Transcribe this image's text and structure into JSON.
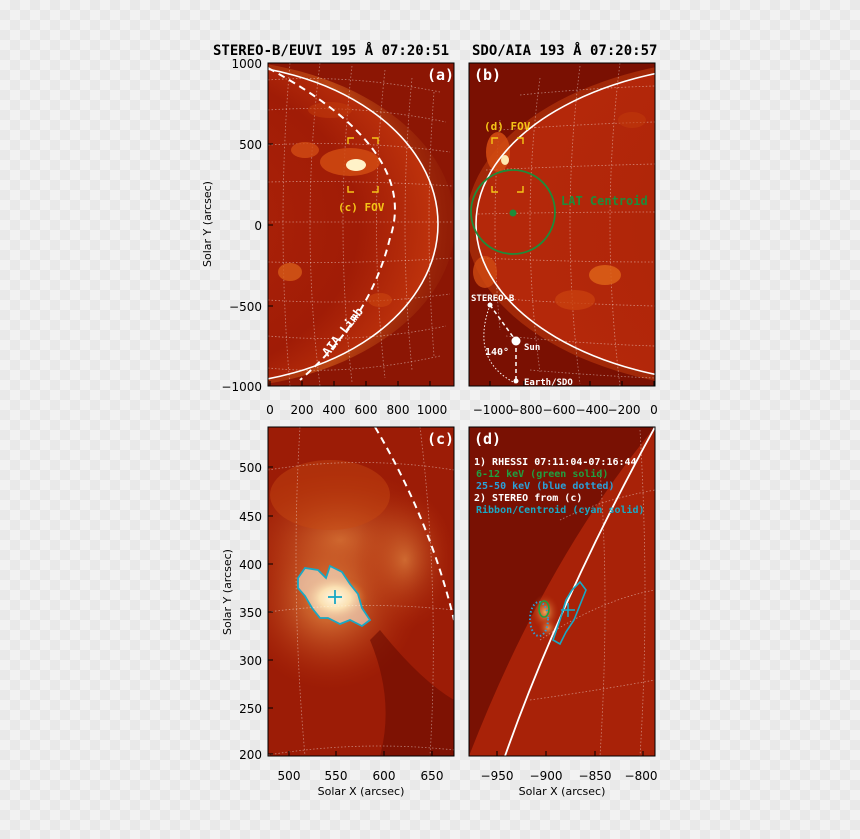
{
  "titles": {
    "left": "STEREO-B/EUVI 195 Å 07:20:51",
    "right": "SDO/AIA 193 Å 07:20:57"
  },
  "axes": {
    "solar_x": "Solar X (arcsec)",
    "solar_y": "Solar Y (arcsec)"
  },
  "panels": {
    "a": {
      "label": "(a)",
      "fov_label": "(c) FOV",
      "limb_label": "AIA Limb",
      "x_ticks": [
        "0",
        "200",
        "400",
        "600",
        "800",
        "1000"
      ],
      "y_ticks": [
        "1000",
        "500",
        "0",
        "−500",
        "−1000"
      ]
    },
    "b": {
      "label": "(b)",
      "fov_label": "(d) FOV",
      "lat_label": "LAT Centroid",
      "stereo_label": "STEREO-B",
      "sun_label": "Sun",
      "earth_label": "Earth/SDO",
      "angle_label": "140°",
      "x_ticks": [
        "−1000",
        "−800",
        "−600",
        "−400",
        "−200",
        "0"
      ]
    },
    "c": {
      "label": "(c)",
      "x_ticks": [
        "500",
        "550",
        "600",
        "650"
      ],
      "y_ticks": [
        "500",
        "450",
        "400",
        "350",
        "300",
        "250",
        "200"
      ]
    },
    "d": {
      "label": "(d)",
      "legend": [
        "1) RHESSI 07:11:04-07:16:44",
        "6-12 keV (green solid)",
        "25-50 keV (blue dotted)",
        "2) STEREO from (c)",
        "Ribbon/Centroid (cyan solid)"
      ],
      "x_ticks": [
        "−950",
        "−900",
        "−850",
        "−800"
      ]
    }
  },
  "colors": {
    "lat_green": "#1e8c3a",
    "fov_yellow": "#f5c518",
    "cyan": "#1aa8c4",
    "blue": "#2aa0d8",
    "legend_green": "#20a040"
  }
}
